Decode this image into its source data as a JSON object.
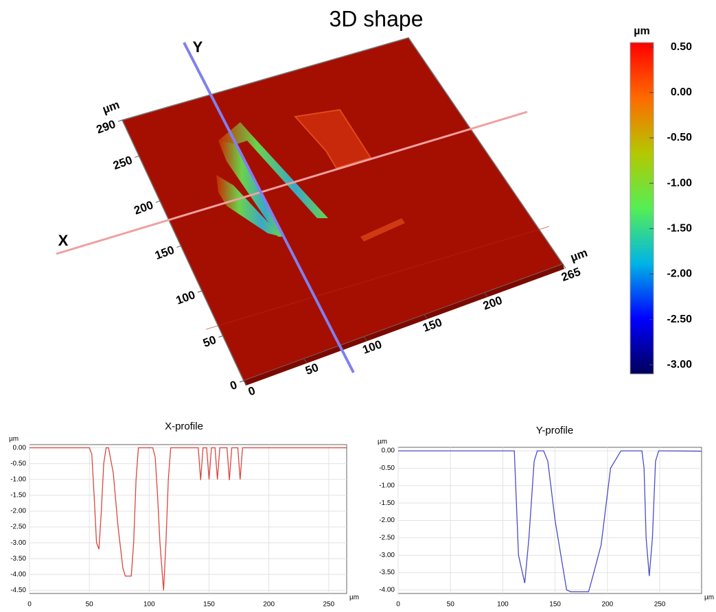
{
  "chart_data": [
    {
      "type": "surface3d",
      "title": "3D shape",
      "x_label": "X",
      "y_label": "Y",
      "x_unit": "µm",
      "y_unit": "µm",
      "xlim": [
        0,
        265
      ],
      "ylim": [
        0,
        290
      ],
      "xticks": [
        0,
        50,
        100,
        150,
        200,
        265
      ],
      "yticks": [
        0,
        50,
        100,
        150,
        200,
        250,
        290
      ],
      "colorbar_label": "µm",
      "clim": [
        -3.1,
        0.55
      ],
      "colorbar_ticks": [
        {
          "value": 0.5,
          "label": "0.50"
        },
        {
          "value": 0,
          "label": "0.00"
        },
        {
          "value": -0.5,
          "label": "-0.50"
        },
        {
          "value": -1,
          "label": "-1.00"
        },
        {
          "value": -1.5,
          "label": "-1.50"
        },
        {
          "value": -2,
          "label": "-2.00"
        },
        {
          "value": -2.5,
          "label": "-2.50"
        },
        {
          "value": -3,
          "label": "-3.00"
        }
      ],
      "colorscale": [
        "#00005a",
        "#0000ff",
        "#00b4e6",
        "#55ee55",
        "#b4c800",
        "#ff6a00",
        "#ff0000"
      ],
      "x_line_color": "#f0a0a0",
      "y_line_color": "#8080f0"
    },
    {
      "type": "line",
      "title": "X-profile",
      "x_unit": "µm",
      "y_unit": "µm",
      "color": "#d9453f",
      "grid": true,
      "xlim": [
        0,
        265
      ],
      "ylim": [
        -4.6,
        0.1
      ],
      "xticks": [
        0,
        50,
        100,
        150,
        200,
        250
      ],
      "yticks": [
        {
          "value": 0,
          "label": "0.00"
        },
        {
          "value": -0.5,
          "label": "-0.50"
        },
        {
          "value": -1,
          "label": "-1.00"
        },
        {
          "value": -1.5,
          "label": "-1.50"
        },
        {
          "value": -2,
          "label": "-2.00"
        },
        {
          "value": -2.5,
          "label": "-2.50"
        },
        {
          "value": -3,
          "label": "-3.00"
        },
        {
          "value": -3.5,
          "label": "-3.50"
        },
        {
          "value": -4,
          "label": "-4.00"
        },
        {
          "value": -4.5,
          "label": "-4.50"
        }
      ],
      "x": [
        0,
        50,
        52,
        54,
        56,
        58,
        60,
        62,
        64,
        66,
        70,
        74,
        78,
        80,
        85,
        87,
        89,
        91,
        103,
        105,
        107,
        109,
        111,
        112,
        114,
        116,
        118,
        141,
        143,
        145,
        148,
        150,
        152,
        155,
        157,
        159,
        165,
        167,
        169,
        174,
        176,
        178,
        200,
        265
      ],
      "values": [
        0,
        0,
        -0.2,
        -1.5,
        -3.0,
        -3.2,
        -2.0,
        -0.5,
        0,
        0,
        -0.8,
        -2.5,
        -3.8,
        -4.05,
        -4.05,
        -3.0,
        -1.0,
        0,
        0,
        -0.3,
        -1.5,
        -3.0,
        -4.0,
        -4.5,
        -3.0,
        -1.0,
        0,
        0,
        -1.02,
        0,
        0,
        -1.0,
        0,
        0,
        -1.0,
        0,
        0,
        -1.02,
        0,
        0,
        -1.0,
        0,
        0,
        0
      ]
    },
    {
      "type": "line",
      "title": "Y-profile",
      "x_unit": "µm",
      "y_unit": "µm",
      "color": "#4a4ac8",
      "grid": true,
      "xlim": [
        0,
        290
      ],
      "ylim": [
        -4.1,
        0.1
      ],
      "xticks": [
        0,
        50,
        100,
        150,
        200,
        250
      ],
      "yticks": [
        {
          "value": 0,
          "label": "0.00"
        },
        {
          "value": -0.5,
          "label": "-0.50"
        },
        {
          "value": -1,
          "label": "-1.00"
        },
        {
          "value": -1.5,
          "label": "-1.50"
        },
        {
          "value": -2,
          "label": "-2.00"
        },
        {
          "value": -2.5,
          "label": "-2.50"
        },
        {
          "value": -3,
          "label": "-3.00"
        },
        {
          "value": -3.5,
          "label": "-3.50"
        },
        {
          "value": -4,
          "label": "-4.00"
        }
      ],
      "x": [
        0,
        111,
        115,
        118,
        121,
        125,
        130,
        133,
        139,
        143,
        150,
        161,
        165,
        182,
        187,
        194,
        203,
        213,
        233,
        235,
        237,
        240,
        243,
        246,
        249,
        252,
        290
      ],
      "values": [
        0,
        0,
        -3.0,
        -3.4,
        -3.8,
        -2.5,
        -0.3,
        0,
        0,
        -0.3,
        -2.0,
        -4.0,
        -4.05,
        -4.05,
        -3.5,
        -2.7,
        -0.5,
        0,
        0,
        -0.5,
        -2.5,
        -3.6,
        -2.5,
        -0.3,
        0,
        0,
        -0.01
      ]
    }
  ]
}
